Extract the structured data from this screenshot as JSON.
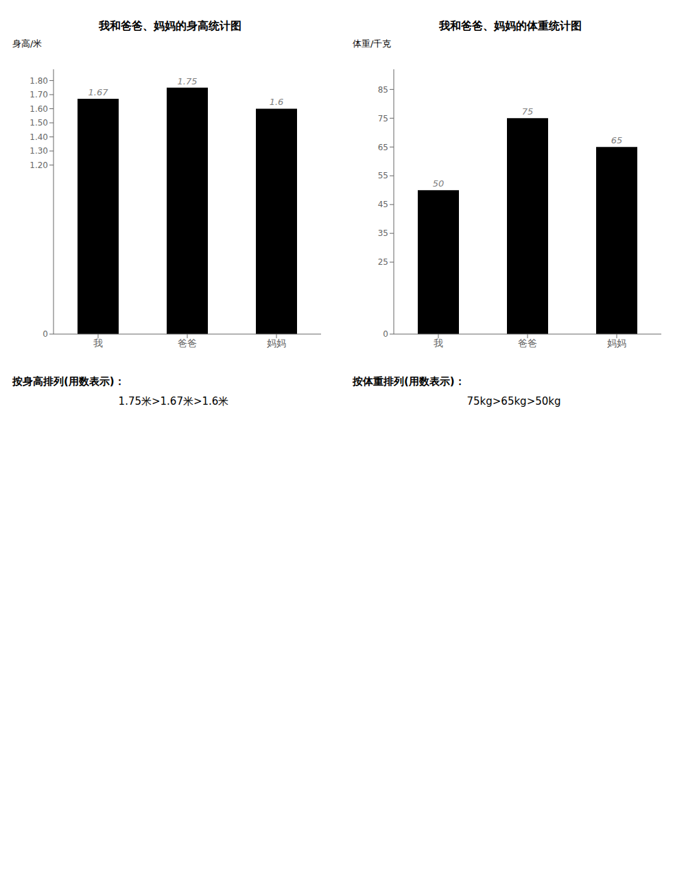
{
  "chart_data": [
    {
      "type": "bar",
      "title": "我和爸爸、妈妈的身高统计图",
      "y_label": "身高/米",
      "categories": [
        "我",
        "爸爸",
        "妈妈"
      ],
      "values": [
        1.67,
        1.75,
        1.6
      ],
      "ylim": [
        0,
        1.88
      ],
      "yticks": [
        0,
        {
          "value": 1.2,
          "label": "1.20"
        },
        {
          "value": 1.3,
          "label": "1.30"
        },
        {
          "value": 1.4,
          "label": "1.40"
        },
        {
          "value": 1.5,
          "label": "1.50"
        },
        {
          "value": 1.6,
          "label": "1.60"
        },
        {
          "value": 1.7,
          "label": "1.70"
        },
        {
          "value": 1.8,
          "label": "1.80"
        }
      ],
      "data_labels": true,
      "annotations": [
        "按身高排列(用数表示)：",
        "1.75米>1.67米>1.6米"
      ]
    },
    {
      "type": "bar",
      "title": "我和爸爸、妈妈的体重统计图",
      "y_label": "体重/千克",
      "categories": [
        "我",
        "爸爸",
        "妈妈"
      ],
      "values": [
        50,
        75,
        65
      ],
      "ylim": [
        0,
        92
      ],
      "yticks": [
        0,
        25,
        35,
        45,
        55,
        65,
        75,
        85
      ],
      "data_labels": true,
      "annotations": [
        "按体重排列(用数表示)：",
        "75kg>65kg>50kg"
      ]
    }
  ]
}
